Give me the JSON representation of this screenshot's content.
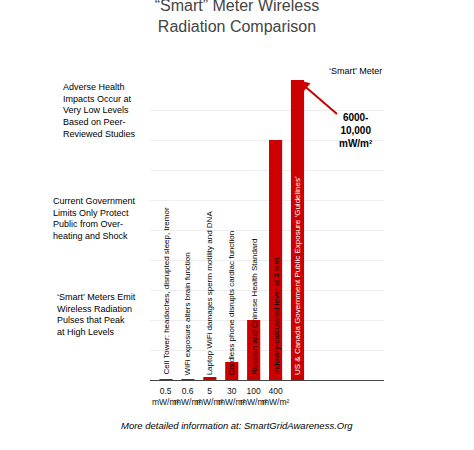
{
  "chart_data": {
    "type": "bar",
    "title": "“Smart” Meter Wireless\nRadiation Comparison",
    "categories": [
      "Cell Tower: headaches, disrupted sleep, tremor",
      "WiFi exposure alters brain function",
      "Laptop WiFi damages sperm motility and DNA",
      "Cordless phone disrupts cardiac function",
      "Russian and Chinese Health Standard",
      "Industry-calculated level at 3 feet",
      "US & Canada Government Public Exposure ‘Guidelines’"
    ],
    "values": [
      0.5,
      0.6,
      5,
      30,
      100,
      400,
      500
    ],
    "value_labels": [
      "0.5\nmW/m²",
      "0.6\nmW/m²",
      "5\nmW/m²",
      "30\nmW/m²",
      "100\nmW/m²",
      "400\nmW/m²",
      null
    ],
    "data_labels": true,
    "color": "#cc0000",
    "ylim": [
      0,
      500
    ],
    "yticks": [
      0,
      50,
      100,
      150,
      200,
      250,
      300,
      350,
      400,
      450,
      500
    ],
    "grid": true,
    "tick_labels": false,
    "annotations": [
      "Adverse Health\nImpacts Occur at\nVery Low Levels\nBased on Peer-\nReviewed Studies",
      "Current Government\nLimits Only Protect\nPublic from Over-\nheating and Shock",
      "‘Smart’ Meters Emit\nWireless Radiation\nPulses that Peak\nat High Levels",
      "‘Smart’ Meter",
      "6000-\n10,000\nmW/m²",
      "More detailed information at: SmartGridAwareness.Org"
    ]
  }
}
